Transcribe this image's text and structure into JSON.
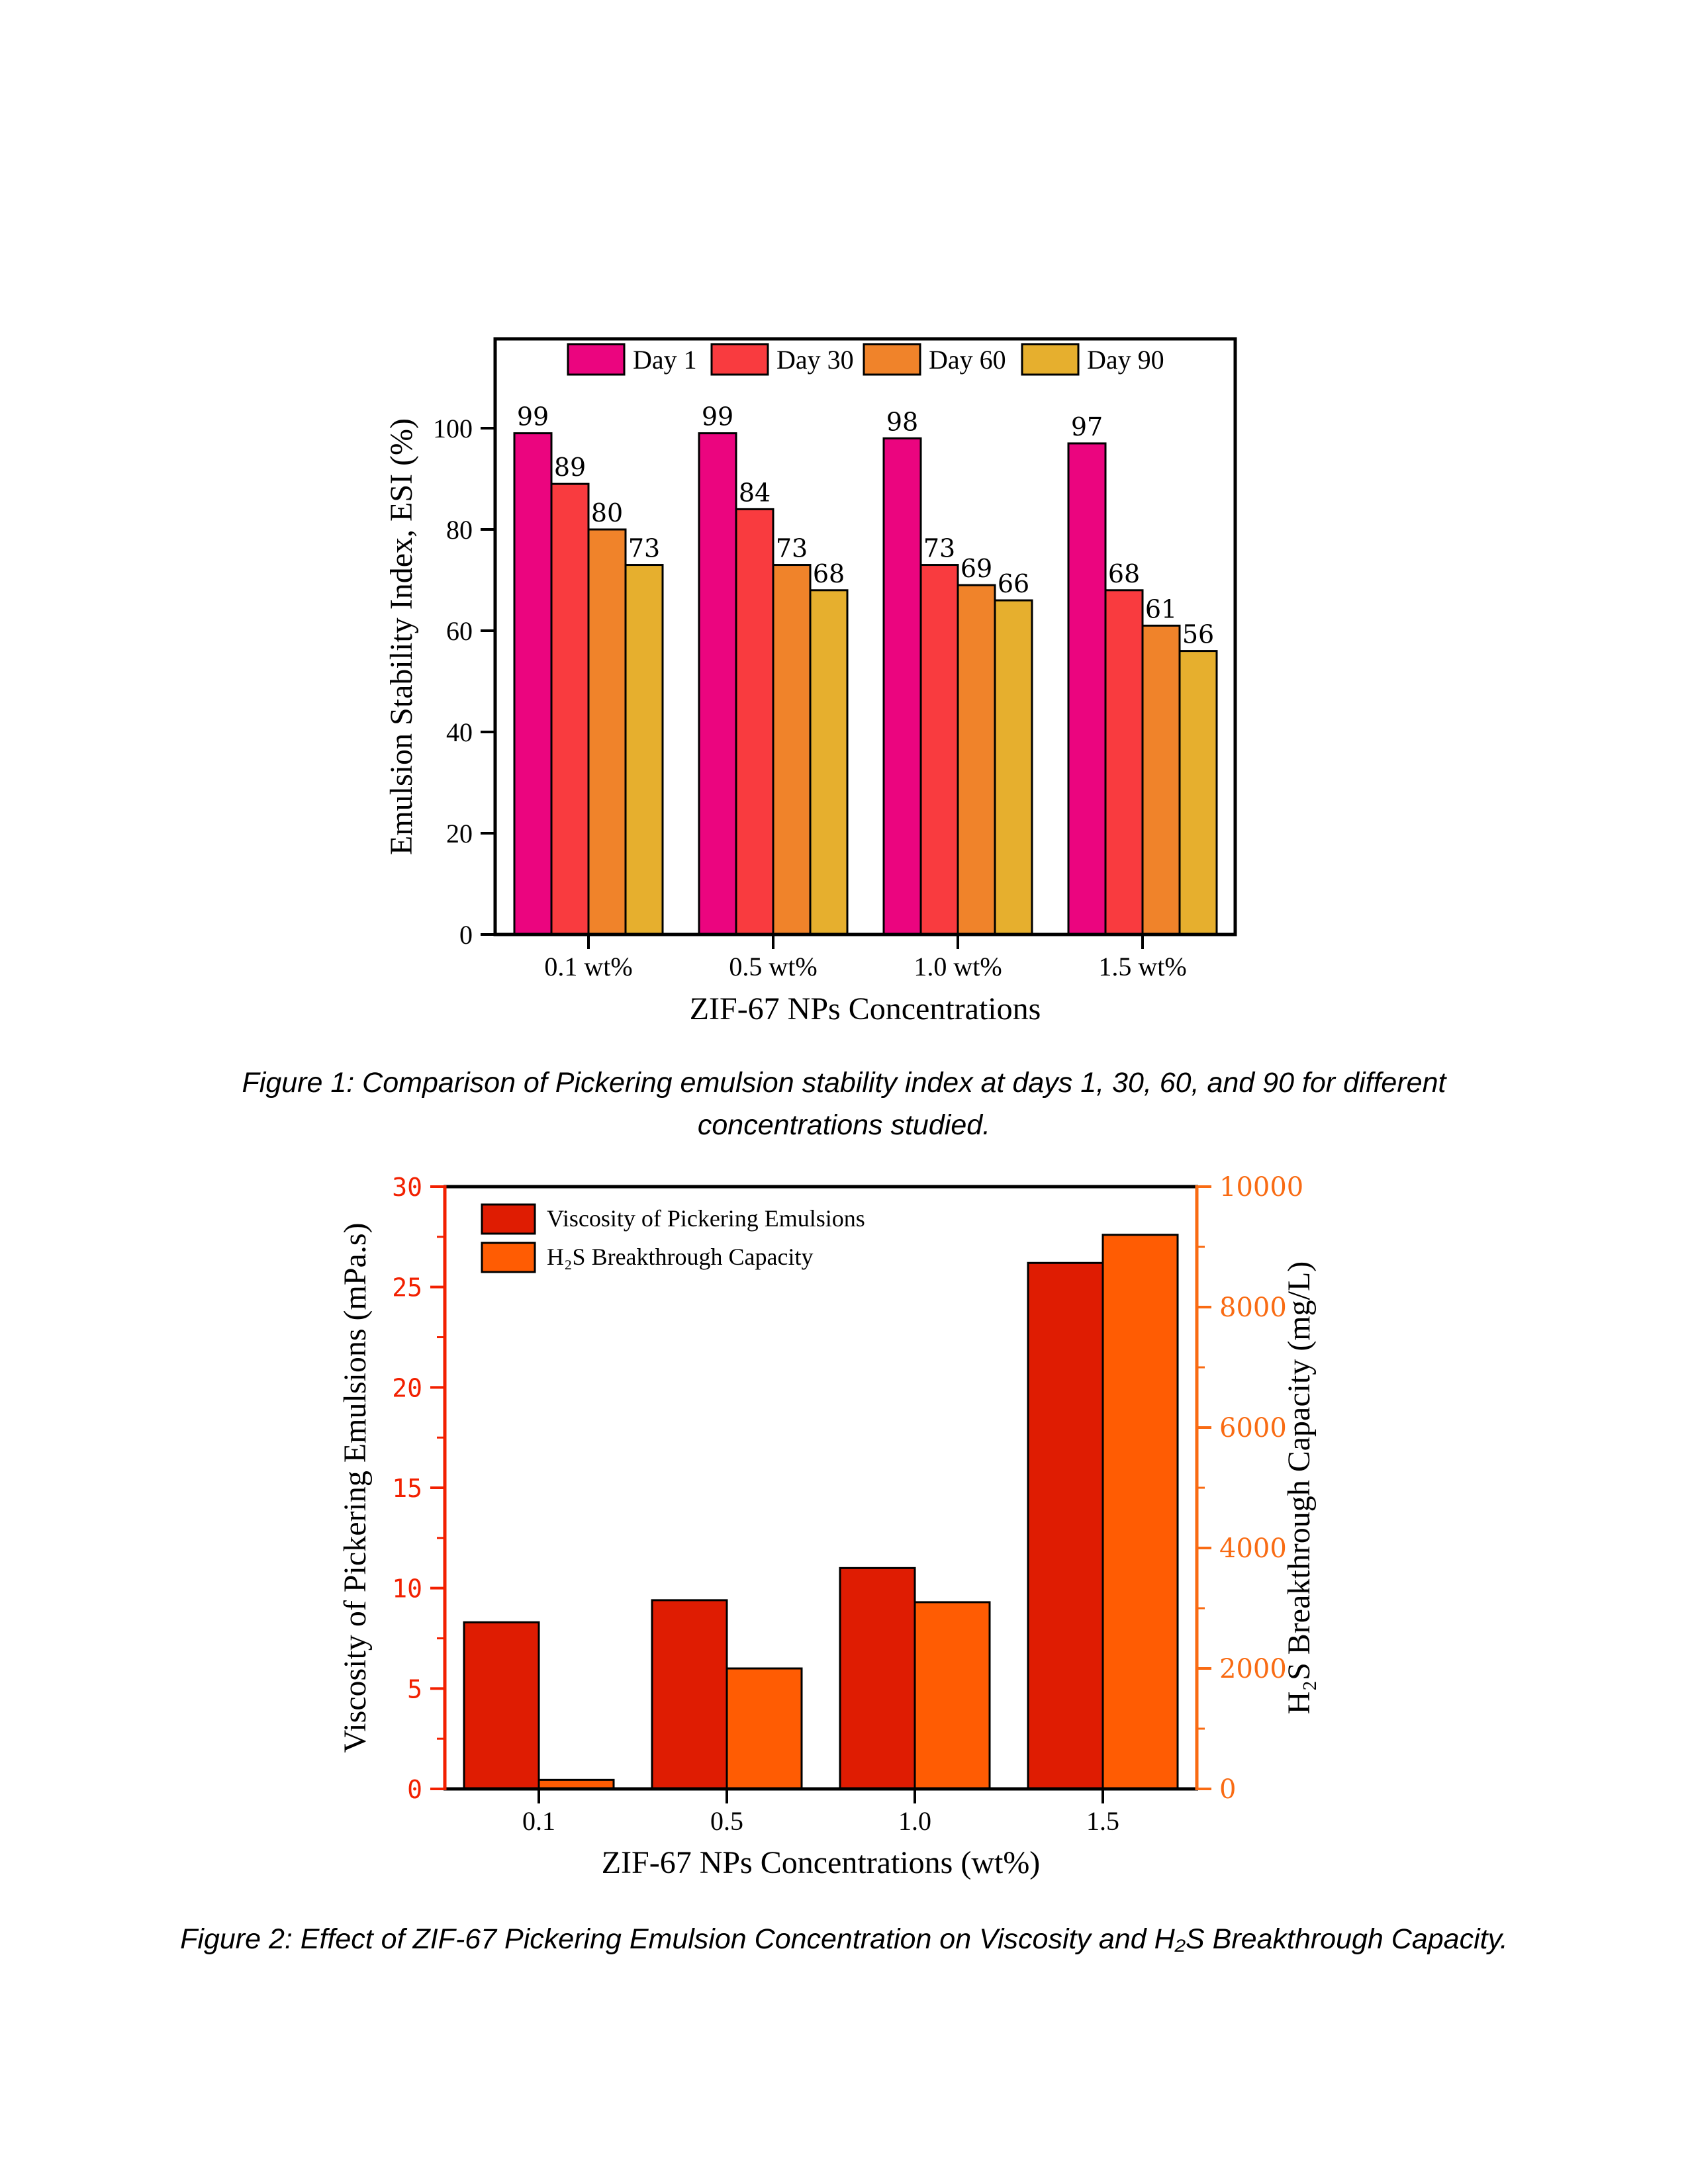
{
  "page": {
    "background": "#ffffff"
  },
  "figures": [
    {
      "caption_lines": [
        "Figure 1: Comparison of Pickering emulsion stability index at days 1, 30, 60, and 90 for different",
        "concentrations studied."
      ]
    },
    {
      "caption_lines": [
        "Figure 2: Effect of ZIF-67 Pickering Emulsion Concentration on Viscosity and H₂S Breakthrough Capacity."
      ]
    }
  ],
  "chart_data": [
    {
      "type": "bar",
      "title": "",
      "categories": [
        "0.1 wt%",
        "0.5 wt%",
        "1.0 wt%",
        "1.5 wt%"
      ],
      "series": [
        {
          "name": "Day 1",
          "color": "#EB057F",
          "values": [
            99,
            99,
            98,
            97
          ]
        },
        {
          "name": "Day 30",
          "color": "#F93B3F",
          "values": [
            89,
            84,
            73,
            68
          ]
        },
        {
          "name": "Day 60",
          "color": "#F0832A",
          "values": [
            80,
            73,
            69,
            61
          ]
        },
        {
          "name": "Day 90",
          "color": "#E6AF2E",
          "values": [
            73,
            68,
            66,
            56
          ]
        }
      ],
      "bar_value_labels": true,
      "xlabel": "ZIF-67 NPs Concentrations",
      "ylabel": "Emulsion Stability Index, ESI (%)",
      "ylim": [
        0,
        117
      ],
      "yticks": [
        0,
        20,
        40,
        60,
        80,
        100
      ],
      "bar_edge_color": "#000000",
      "legend_position": "top-inside-horizontal",
      "grid": false
    },
    {
      "type": "bar-dual-axis",
      "title": "",
      "categories": [
        "0.1",
        "0.5",
        "1.0",
        "1.5"
      ],
      "series": [
        {
          "name": "Viscosity of Pickering Emulsions",
          "axis": "left",
          "color": "#DF1C02",
          "values": [
            8.3,
            9.4,
            11.0,
            26.2
          ]
        },
        {
          "name": "H₂S Breakthrough Capacity",
          "axis": "right",
          "color": "#FF5C03",
          "values": [
            150,
            2000,
            3100,
            9200
          ]
        }
      ],
      "xlabel": "ZIF-67 NPs Concentrations (wt%)",
      "ylabel_left": "Viscosity of Pickering Emulsions (mPa.s)",
      "ylabel_right": "H₂S Breakthrough Capacity (mg/L)",
      "ylim_left": [
        0,
        30
      ],
      "yticks_left": [
        0,
        5,
        10,
        15,
        20,
        25,
        30
      ],
      "yticks_left_minor": [
        2.5,
        7.5,
        12.5,
        17.5,
        22.5,
        27.5
      ],
      "ylim_right": [
        0,
        10000
      ],
      "yticks_right": [
        0,
        2000,
        4000,
        6000,
        8000,
        10000
      ],
      "yticks_right_minor": [
        1000,
        3000,
        5000,
        7000,
        9000
      ],
      "axis_color_left": "#F22000",
      "axis_color_right": "#F96B13",
      "bar_edge_color": "#000000",
      "legend_position": "upper-left-inside",
      "grid": false
    }
  ]
}
